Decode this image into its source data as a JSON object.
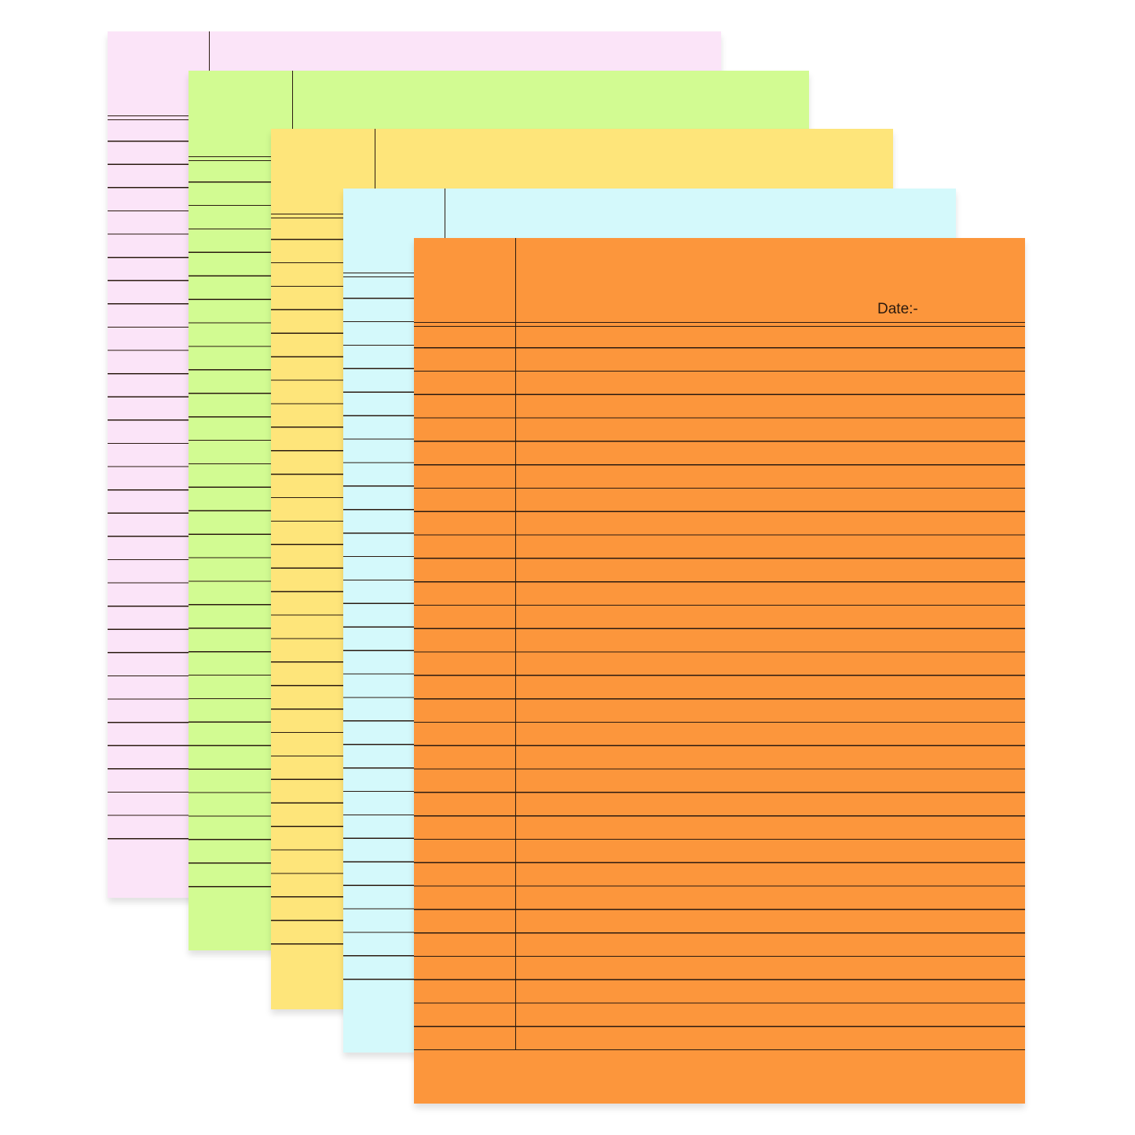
{
  "sheets": [
    {
      "name": "pink-sheet",
      "color": "#fbe4f8"
    },
    {
      "name": "green-sheet",
      "color": "#d2fb92"
    },
    {
      "name": "yellow-sheet",
      "color": "#fee57a"
    },
    {
      "name": "blue-sheet",
      "color": "#d4f9fb"
    },
    {
      "name": "orange-sheet",
      "color": "#fc963c"
    }
  ],
  "orange_sheet": {
    "date_label": "Date:-"
  },
  "rule_color": "#2a1a10"
}
